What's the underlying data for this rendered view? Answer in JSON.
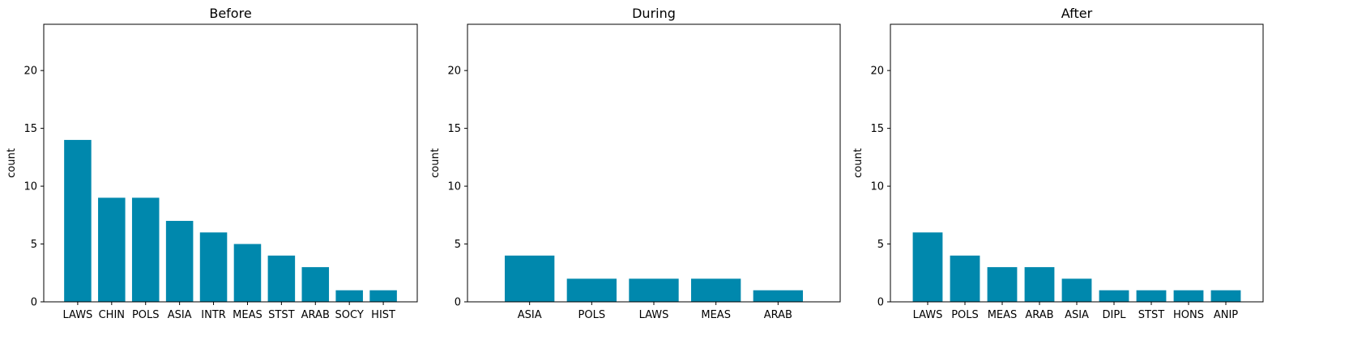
{
  "bar_color": "#0088ad",
  "chart_data": [
    {
      "type": "bar",
      "title": "Before",
      "xlabel": "",
      "ylabel": "count",
      "ylim": [
        0,
        24
      ],
      "yticks": [
        0,
        5,
        10,
        15,
        20
      ],
      "categories": [
        "LAWS",
        "CHIN",
        "POLS",
        "ASIA",
        "INTR",
        "MEAS",
        "STST",
        "ARAB",
        "SOCY",
        "HIST"
      ],
      "values": [
        14,
        9,
        9,
        7,
        6,
        5,
        4,
        3,
        1,
        1
      ]
    },
    {
      "type": "bar",
      "title": "During",
      "xlabel": "",
      "ylabel": "count",
      "ylim": [
        0,
        24
      ],
      "yticks": [
        0,
        5,
        10,
        15,
        20
      ],
      "categories": [
        "ASIA",
        "POLS",
        "LAWS",
        "MEAS",
        "ARAB"
      ],
      "values": [
        4,
        2,
        2,
        2,
        1
      ]
    },
    {
      "type": "bar",
      "title": "After",
      "xlabel": "",
      "ylabel": "count",
      "ylim": [
        0,
        24
      ],
      "yticks": [
        0,
        5,
        10,
        15,
        20
      ],
      "categories": [
        "LAWS",
        "POLS",
        "MEAS",
        "ARAB",
        "ASIA",
        "DIPL",
        "STST",
        "HONS",
        "ANIP"
      ],
      "values": [
        6,
        4,
        3,
        3,
        2,
        1,
        1,
        1,
        1
      ]
    }
  ]
}
